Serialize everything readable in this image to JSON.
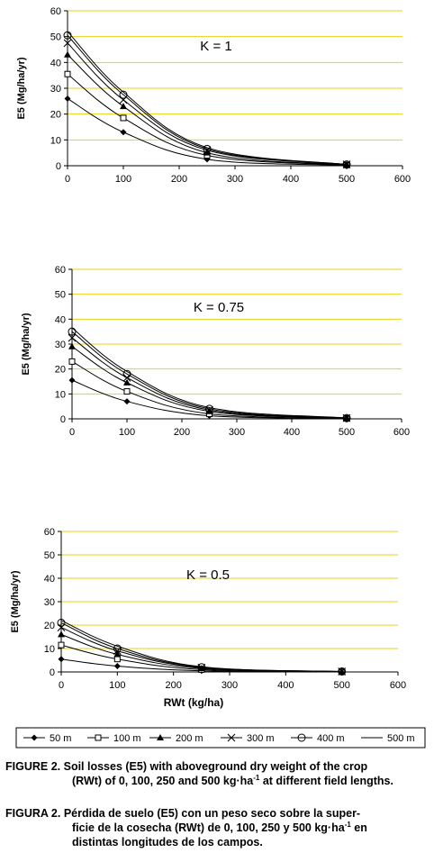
{
  "chart_data": [
    {
      "type": "line",
      "annotation": "K = 1",
      "xlabel": "",
      "ylabel": "E5 (Mg/ha/yr)",
      "xlim": [
        0,
        600
      ],
      "ylim": [
        0,
        60
      ],
      "xticks": [
        "0",
        "100",
        "200",
        "300",
        "400",
        "500",
        "600"
      ],
      "yticks": [
        "0",
        "10",
        "20",
        "30",
        "40",
        "50",
        "60"
      ],
      "grid": "horizontal",
      "x": [
        0,
        100,
        250,
        500
      ],
      "series": [
        {
          "name": "50 m",
          "values": [
            26,
            13,
            2.5,
            0.2
          ]
        },
        {
          "name": "100 m",
          "values": [
            35.5,
            18.5,
            4,
            0.3
          ]
        },
        {
          "name": "200 m",
          "values": [
            43,
            23,
            5,
            0.4
          ]
        },
        {
          "name": "300 m",
          "values": [
            47.5,
            25.5,
            6,
            0.5
          ]
        },
        {
          "name": "400 m",
          "values": [
            50.5,
            27.5,
            6.5,
            0.5
          ]
        },
        {
          "name": "500 m",
          "values": [
            52,
            28.5,
            7,
            0.5
          ]
        }
      ]
    },
    {
      "type": "line",
      "annotation": "K = 0.75",
      "xlabel": "",
      "ylabel": "E5 (Mg/ha/yr)",
      "xlim": [
        0,
        600
      ],
      "ylim": [
        0,
        60
      ],
      "xticks": [
        "0",
        "100",
        "200",
        "300",
        "400",
        "500",
        "600"
      ],
      "yticks": [
        "0",
        "10",
        "20",
        "30",
        "40",
        "50",
        "60"
      ],
      "grid": "horizontal",
      "x": [
        0,
        100,
        250,
        500
      ],
      "series": [
        {
          "name": "50 m",
          "values": [
            15.5,
            7,
            1.2,
            0.1
          ]
        },
        {
          "name": "100 m",
          "values": [
            23,
            11,
            2,
            0.2
          ]
        },
        {
          "name": "200 m",
          "values": [
            29,
            14.5,
            3,
            0.3
          ]
        },
        {
          "name": "300 m",
          "values": [
            32.5,
            16.5,
            3.5,
            0.3
          ]
        },
        {
          "name": "400 m",
          "values": [
            35,
            18,
            4,
            0.3
          ]
        },
        {
          "name": "500 m",
          "values": [
            36.5,
            19,
            4.5,
            0.4
          ]
        }
      ]
    },
    {
      "type": "line",
      "annotation": "K = 0.5",
      "xlabel": "RWt (kg/ha)",
      "ylabel": "E5 (Mg/ha/yr)",
      "xlim": [
        0,
        600
      ],
      "ylim": [
        0,
        60
      ],
      "xticks": [
        "0",
        "100",
        "200",
        "300",
        "400",
        "500",
        "600"
      ],
      "yticks": [
        "0",
        "10",
        "20",
        "30",
        "40",
        "50",
        "60"
      ],
      "grid": "horizontal",
      "x": [
        0,
        100,
        250,
        500
      ],
      "series": [
        {
          "name": "50 m",
          "values": [
            5.5,
            2.5,
            0.5,
            0.05
          ]
        },
        {
          "name": "100 m",
          "values": [
            11.5,
            5.5,
            1,
            0.1
          ]
        },
        {
          "name": "200 m",
          "values": [
            16,
            7.5,
            1.5,
            0.15
          ]
        },
        {
          "name": "300 m",
          "values": [
            19,
            9,
            1.8,
            0.2
          ]
        },
        {
          "name": "400 m",
          "values": [
            21,
            10,
            2,
            0.2
          ]
        },
        {
          "name": "500 m",
          "values": [
            22,
            11,
            2.2,
            0.2
          ]
        }
      ]
    }
  ],
  "colors": {
    "grid": "#e8d21a",
    "line": "#000000",
    "legend_border": "#000000"
  },
  "legend": [
    {
      "label": "50 m",
      "marker": "filled-diamond"
    },
    {
      "label": "100 m",
      "marker": "open-square"
    },
    {
      "label": "200 m",
      "marker": "filled-triangle"
    },
    {
      "label": "300 m",
      "marker": "x-cross"
    },
    {
      "label": "400 m",
      "marker": "open-circle"
    },
    {
      "label": "500 m",
      "marker": "none"
    }
  ],
  "captions": {
    "en_lead": "FIGURE 2.",
    "en_line1": "Soil losses (E5) with aboveground dry weight of the crop",
    "en_line2a": "(RWt) of 0, 100, 250 and 500 kg·ha",
    "en_sup": "-1",
    "en_line2b": " at different field lengths.",
    "es_lead": "FIGURA 2.",
    "es_line1": "Pérdida de suelo (E5) con un peso seco sobre la super-",
    "es_line2a": "ficie de la cosecha (RWt) de 0, 100, 250 y 500 kg·ha",
    "es_sup": "-1",
    "es_line2b": " en",
    "es_line3": "distintas longitudes de los campos."
  }
}
